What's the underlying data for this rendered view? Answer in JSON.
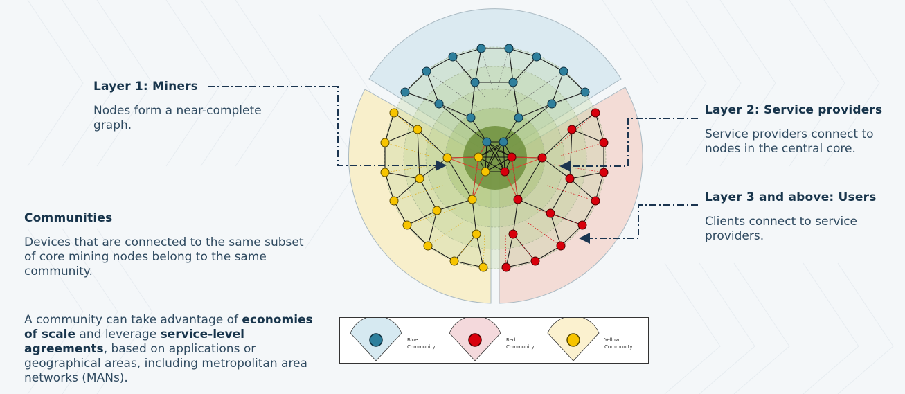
{
  "layer1": {
    "title": "Layer 1: Miners",
    "description": "Nodes form a near-complete graph."
  },
  "layer2": {
    "title": "Layer 2: Service providers",
    "description": "Service providers connect to nodes in the central core."
  },
  "layer3": {
    "title": "Layer 3 and above: Users",
    "description": "Clients connect to service providers."
  },
  "communities": {
    "title": "Communities",
    "description": "Devices that are connected to the same subset of core mining nodes belong to the same community.",
    "para_part1": "A community can take advantage of ",
    "para_bold1": "economies of scale",
    "para_part2": " and leverage ",
    "para_bold2": "service-level agreements",
    "para_part3": ", based on applications or geographical areas, including metropolitan area networks (MANs)."
  },
  "legend": {
    "items": [
      {
        "label_line1": "Blue",
        "label_line2": "Community",
        "color": "#2e7f9c",
        "fill": "#d6e9f1"
      },
      {
        "label_line1": "Red",
        "label_line2": "Community",
        "color": "#d8000c",
        "fill": "#f4d9dc"
      },
      {
        "label_line1": "Yellow",
        "label_line2": "Community",
        "color": "#f7c400",
        "fill": "#fbf1cf"
      }
    ]
  },
  "colors": {
    "blue_node": "#2e7f9c",
    "red_node": "#d8000c",
    "yellow_node": "#f7c400",
    "connector_line": "#1b3550",
    "core": "#6b8a3a"
  }
}
